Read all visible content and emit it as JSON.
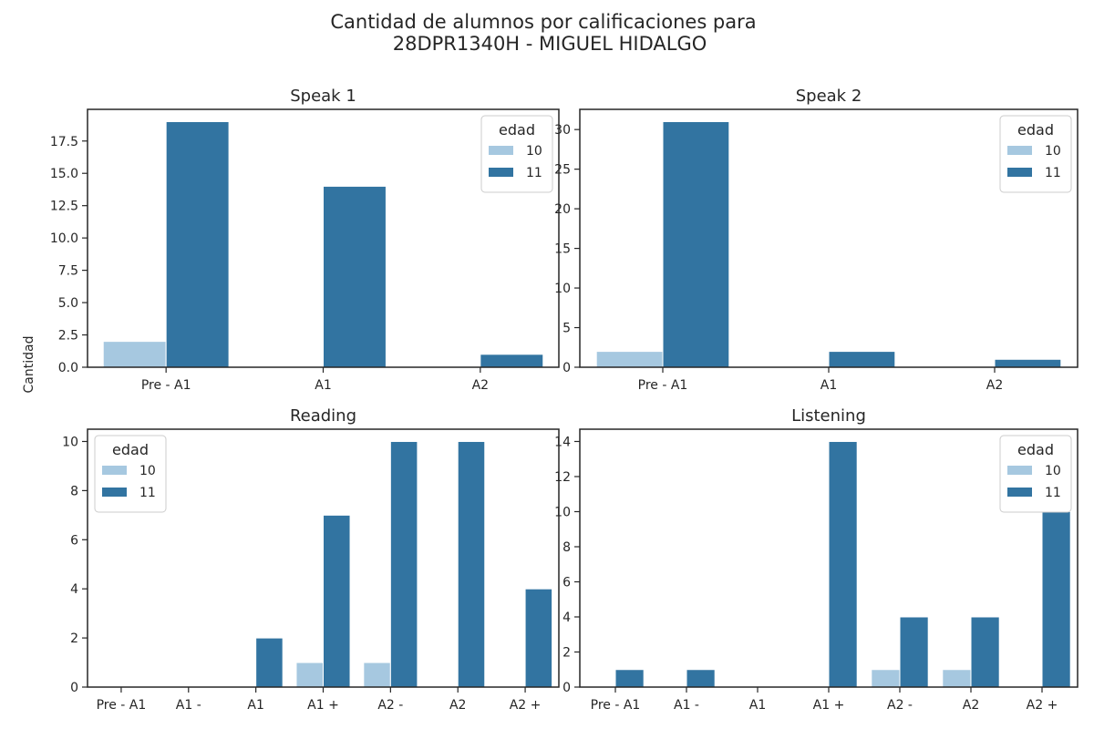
{
  "figure": {
    "title_line1": "Cantidad de alumnos por calificaciones para",
    "title_line2": "28DPR1340H - MIGUEL HIDALGO",
    "ylabel": "Cantidad"
  },
  "colors": {
    "age_10": "#a6c8e0",
    "age_11": "#3274a1"
  },
  "chart_data": [
    {
      "type": "bar",
      "title": "Speak 1",
      "categories": [
        "Pre - A1",
        "A1",
        "A2"
      ],
      "series": [
        {
          "name": "10",
          "values": [
            2,
            0,
            0
          ]
        },
        {
          "name": "11",
          "values": [
            19,
            14,
            1
          ]
        }
      ],
      "ylim": [
        0,
        19.95
      ],
      "yticks": [
        0.0,
        2.5,
        5.0,
        7.5,
        10.0,
        12.5,
        15.0,
        17.5
      ],
      "ytick_labels": [
        "0.0",
        "2.5",
        "5.0",
        "7.5",
        "10.0",
        "12.5",
        "15.0",
        "17.5"
      ],
      "legend": {
        "title": "edad",
        "placement": "top-right"
      }
    },
    {
      "type": "bar",
      "title": "Speak 2",
      "categories": [
        "Pre - A1",
        "A1",
        "A2"
      ],
      "series": [
        {
          "name": "10",
          "values": [
            2,
            0,
            0
          ]
        },
        {
          "name": "11",
          "values": [
            31,
            2,
            1
          ]
        }
      ],
      "ylim": [
        0,
        32.55
      ],
      "yticks": [
        0,
        5,
        10,
        15,
        20,
        25,
        30
      ],
      "ytick_labels": [
        "0",
        "5",
        "10",
        "15",
        "20",
        "25",
        "30"
      ],
      "legend": {
        "title": "edad",
        "placement": "top-right"
      }
    },
    {
      "type": "bar",
      "title": "Reading",
      "categories": [
        "Pre - A1",
        "A1 -",
        "A1",
        "A1 +",
        "A2 -",
        "A2",
        "A2 +"
      ],
      "series": [
        {
          "name": "10",
          "values": [
            0,
            0,
            0,
            1,
            1,
            0,
            0
          ]
        },
        {
          "name": "11",
          "values": [
            0,
            0,
            2,
            7,
            10,
            10,
            4
          ]
        }
      ],
      "ylim": [
        0,
        10.5
      ],
      "yticks": [
        0,
        2,
        4,
        6,
        8,
        10
      ],
      "ytick_labels": [
        "0",
        "2",
        "4",
        "6",
        "8",
        "10"
      ],
      "legend": {
        "title": "edad",
        "placement": "top-left"
      }
    },
    {
      "type": "bar",
      "title": "Listening",
      "categories": [
        "Pre - A1",
        "A1 -",
        "A1",
        "A1 +",
        "A2 -",
        "A2",
        "A2 +"
      ],
      "series": [
        {
          "name": "10",
          "values": [
            0,
            0,
            0,
            0,
            1,
            1,
            0
          ]
        },
        {
          "name": "11",
          "values": [
            1,
            1,
            0,
            14,
            4,
            4,
            10
          ]
        }
      ],
      "ylim": [
        0,
        14.7
      ],
      "yticks": [
        0,
        2,
        4,
        6,
        8,
        10,
        12,
        14
      ],
      "ytick_labels": [
        "0",
        "2",
        "4",
        "6",
        "8",
        "10",
        "12",
        "14"
      ],
      "legend": {
        "title": "edad",
        "placement": "top-right"
      }
    }
  ]
}
